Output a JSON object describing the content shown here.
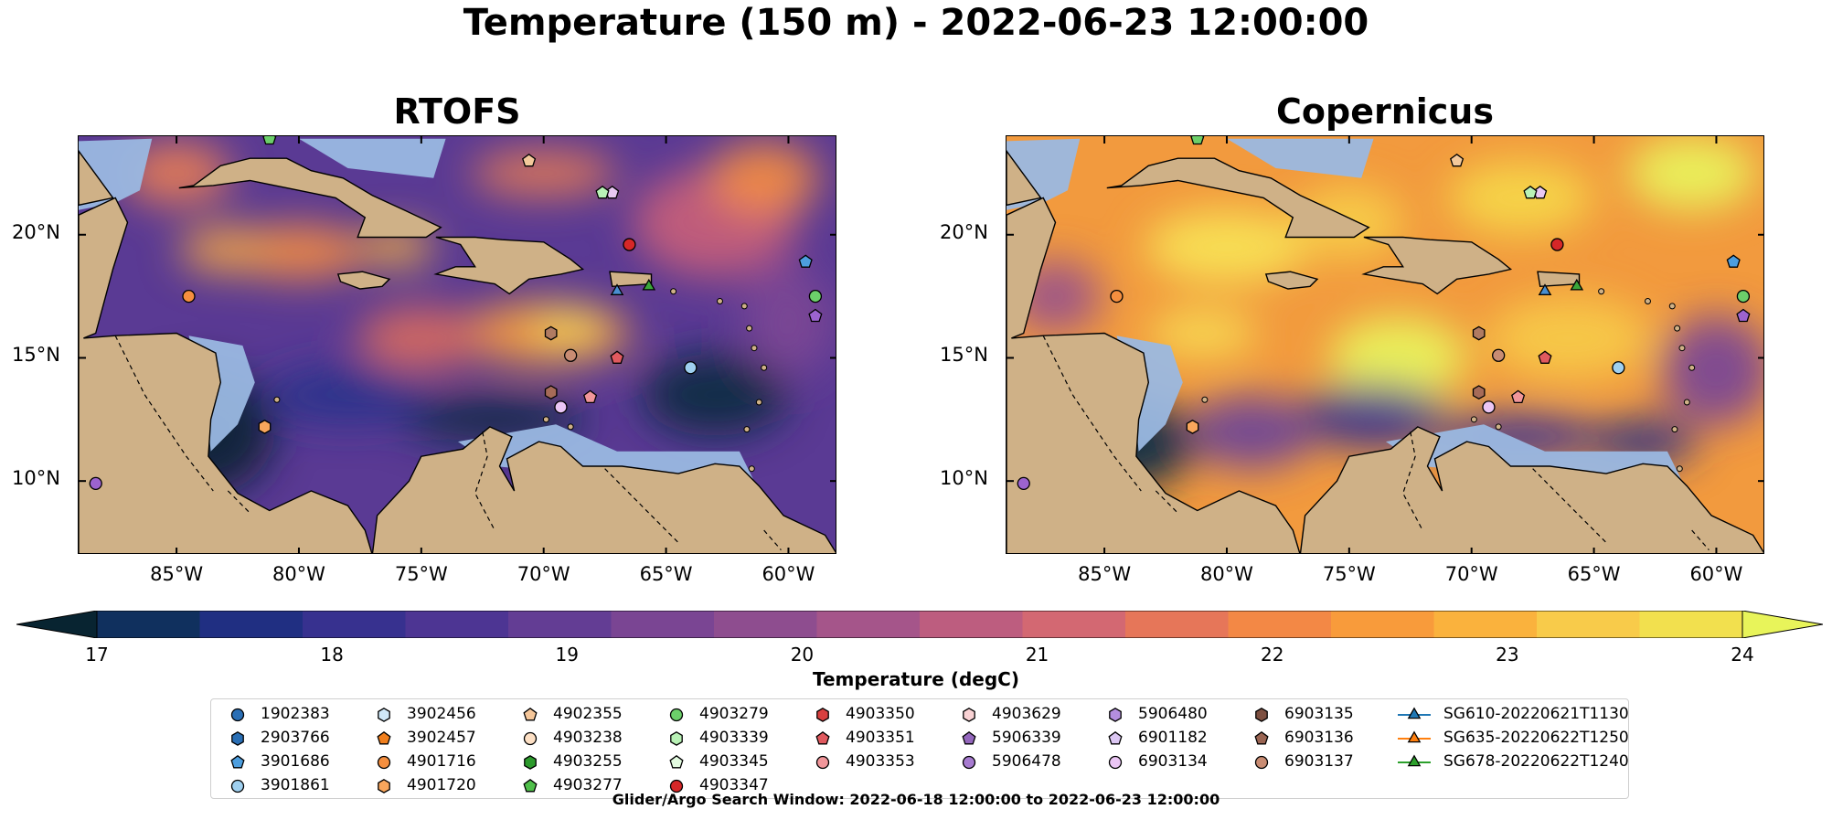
{
  "title": "Temperature (150 m) - 2022-06-23 12:00:00",
  "panels": [
    {
      "title": "RTOFS",
      "style": "cool"
    },
    {
      "title": "Copernicus",
      "style": "warm"
    }
  ],
  "colorbar": {
    "label": "Temperature (degC)",
    "ticks": [
      "17",
      "18",
      "19",
      "20",
      "21",
      "22",
      "23",
      "24"
    ],
    "colors": [
      "#082431",
      "#10305e",
      "#202f82",
      "#37318f",
      "#4d3593",
      "#633d94",
      "#7a4593",
      "#8e4d8f",
      "#a5558a",
      "#bd5d7f",
      "#d36872",
      "#e67659",
      "#f38845",
      "#f89b3b",
      "#fab23d",
      "#f8cb4a",
      "#f2e04e",
      "#e8f45a"
    ]
  },
  "chart_data": {
    "type": "heatmap",
    "title": "Temperature (150 m) - 2022-06-23 12:00:00",
    "panels": [
      "RTOFS",
      "Copernicus"
    ],
    "x_ticks": [
      "85°W",
      "80°W",
      "75°W",
      "70°W",
      "65°W",
      "60°W"
    ],
    "y_ticks": [
      "20°N",
      "15°N",
      "10°N"
    ],
    "xlim": [
      -89,
      -58
    ],
    "ylim": [
      7,
      24
    ],
    "colorbar_range": [
      17,
      24
    ],
    "colorbar_label": "Temperature (degC)",
    "observations": [
      {
        "id": "4902355",
        "lon": -70.6,
        "lat": 23.0,
        "marker": "pentagon",
        "color": "#f3c99b"
      },
      {
        "id": "6903134",
        "lon": -67.2,
        "lat": 21.7,
        "marker": "pentagon",
        "color": "#e9c8f3"
      },
      {
        "id": "4903339",
        "lon": -67.6,
        "lat": 21.7,
        "marker": "pentagon",
        "color": "#b9f2b6"
      },
      {
        "id": "4903347",
        "lon": -66.5,
        "lat": 19.6,
        "marker": "circle",
        "color": "#d62728"
      },
      {
        "id": "1902383",
        "lon": -59.3,
        "lat": 18.9,
        "marker": "pentagon",
        "color": "#4d9ede"
      },
      {
        "id": "4903279",
        "lon": -58.9,
        "lat": 17.5,
        "marker": "circle",
        "color": "#6ccf6a"
      },
      {
        "id": "5906339",
        "lon": -58.9,
        "lat": 16.7,
        "marker": "pentagon",
        "color": "#9c63cf"
      },
      {
        "id": "4901716",
        "lon": -84.5,
        "lat": 17.5,
        "marker": "circle",
        "color": "#f58f3f"
      },
      {
        "id": "6903135",
        "lon": -69.7,
        "lat": 16.0,
        "marker": "hexagon",
        "color": "#b07b62"
      },
      {
        "id": "6903137",
        "lon": -68.9,
        "lat": 15.1,
        "marker": "circle",
        "color": "#c98c73"
      },
      {
        "id": "4903351",
        "lon": -67.0,
        "lat": 15.0,
        "marker": "pentagon",
        "color": "#e05a5f"
      },
      {
        "id": "3901861",
        "lon": -64.0,
        "lat": 14.6,
        "marker": "circle",
        "color": "#9fd0f0"
      },
      {
        "id": "6903136",
        "lon": -69.7,
        "lat": 13.6,
        "marker": "hexagon",
        "color": "#a66b58"
      },
      {
        "id": "4903353",
        "lon": -68.1,
        "lat": 13.4,
        "marker": "pentagon",
        "color": "#f1969a"
      },
      {
        "id": "6903134",
        "lon": -69.3,
        "lat": 13.0,
        "marker": "circle",
        "color": "#ebc6f5"
      },
      {
        "id": "4901720",
        "lon": -81.4,
        "lat": 12.2,
        "marker": "hexagon",
        "color": "#f8a65c"
      },
      {
        "id": "5906478",
        "lon": -88.3,
        "lat": 9.9,
        "marker": "circle",
        "color": "#9c63cf"
      },
      {
        "id": "4903277",
        "lon": -81.2,
        "lat": 23.9,
        "marker": "pentagon",
        "color": "#6ccf6a"
      },
      {
        "id": "SG610-20220621T1130",
        "lon": -67.0,
        "lat": 17.7,
        "marker": "triangle",
        "color": "#4a8fd1"
      },
      {
        "id": "SG678-20220622T1240",
        "lon": -65.7,
        "lat": 17.9,
        "marker": "triangle",
        "color": "#3aa63a"
      }
    ]
  },
  "legend": {
    "columns": [
      [
        {
          "label": "1902383",
          "marker": "circle",
          "color": "#2a6fb5"
        },
        {
          "label": "2903766",
          "marker": "hexagon",
          "color": "#2a6fb5"
        },
        {
          "label": "3901686",
          "marker": "pentagon",
          "color": "#4d9ede"
        },
        {
          "label": "3901861",
          "marker": "circle",
          "color": "#9fd0f0"
        }
      ],
      [
        {
          "label": "3902456",
          "marker": "hexagon",
          "color": "#cfe8f8"
        },
        {
          "label": "3902457",
          "marker": "pentagon",
          "color": "#f07f1e"
        },
        {
          "label": "4901716",
          "marker": "circle",
          "color": "#f58f3f"
        },
        {
          "label": "4901720",
          "marker": "hexagon",
          "color": "#f8a65c"
        }
      ],
      [
        {
          "label": "4902355",
          "marker": "pentagon",
          "color": "#f6c79a"
        },
        {
          "label": "4903238",
          "marker": "circle",
          "color": "#fde0c5"
        },
        {
          "label": "4903255",
          "marker": "hexagon",
          "color": "#2c9a2c"
        },
        {
          "label": "4903277",
          "marker": "pentagon",
          "color": "#4fbf4a"
        }
      ],
      [
        {
          "label": "4903279",
          "marker": "circle",
          "color": "#6ccf6a"
        },
        {
          "label": "4903339",
          "marker": "hexagon",
          "color": "#b9f2b6"
        },
        {
          "label": "4903345",
          "marker": "pentagon",
          "color": "#e3fbe0"
        },
        {
          "label": "4903347",
          "marker": "circle",
          "color": "#d62728"
        }
      ],
      [
        {
          "label": "4903350",
          "marker": "hexagon",
          "color": "#d9403f"
        },
        {
          "label": "4903351",
          "marker": "pentagon",
          "color": "#e05a5f"
        },
        {
          "label": "4903353",
          "marker": "circle",
          "color": "#f1969a"
        }
      ],
      [
        {
          "label": "4903629",
          "marker": "hexagon",
          "color": "#f9d2d4"
        },
        {
          "label": "5906339",
          "marker": "pentagon",
          "color": "#9467bd"
        },
        {
          "label": "5906478",
          "marker": "circle",
          "color": "#a77bd0"
        }
      ],
      [
        {
          "label": "5906480",
          "marker": "hexagon",
          "color": "#b48ee0"
        },
        {
          "label": "6901182",
          "marker": "pentagon",
          "color": "#dcc7f3"
        },
        {
          "label": "6903134",
          "marker": "circle",
          "color": "#ebc6f5"
        }
      ],
      [
        {
          "label": "6903135",
          "marker": "hexagon",
          "color": "#7d4f40"
        },
        {
          "label": "6903136",
          "marker": "pentagon",
          "color": "#9a6553"
        },
        {
          "label": "6903137",
          "marker": "circle",
          "color": "#c98c73"
        }
      ],
      [
        {
          "label": "SG610-20220621T1130",
          "marker": "triangle-line",
          "color": "#1f77b4"
        },
        {
          "label": "SG635-20220622T1250",
          "marker": "triangle-line",
          "color": "#ff7f0e"
        },
        {
          "label": "SG678-20220622T1240",
          "marker": "triangle-line",
          "color": "#2ca02c"
        }
      ]
    ]
  },
  "footnote": "Glider/Argo Search Window: 2022-06-18 12:00:00 to 2022-06-23 12:00:00"
}
